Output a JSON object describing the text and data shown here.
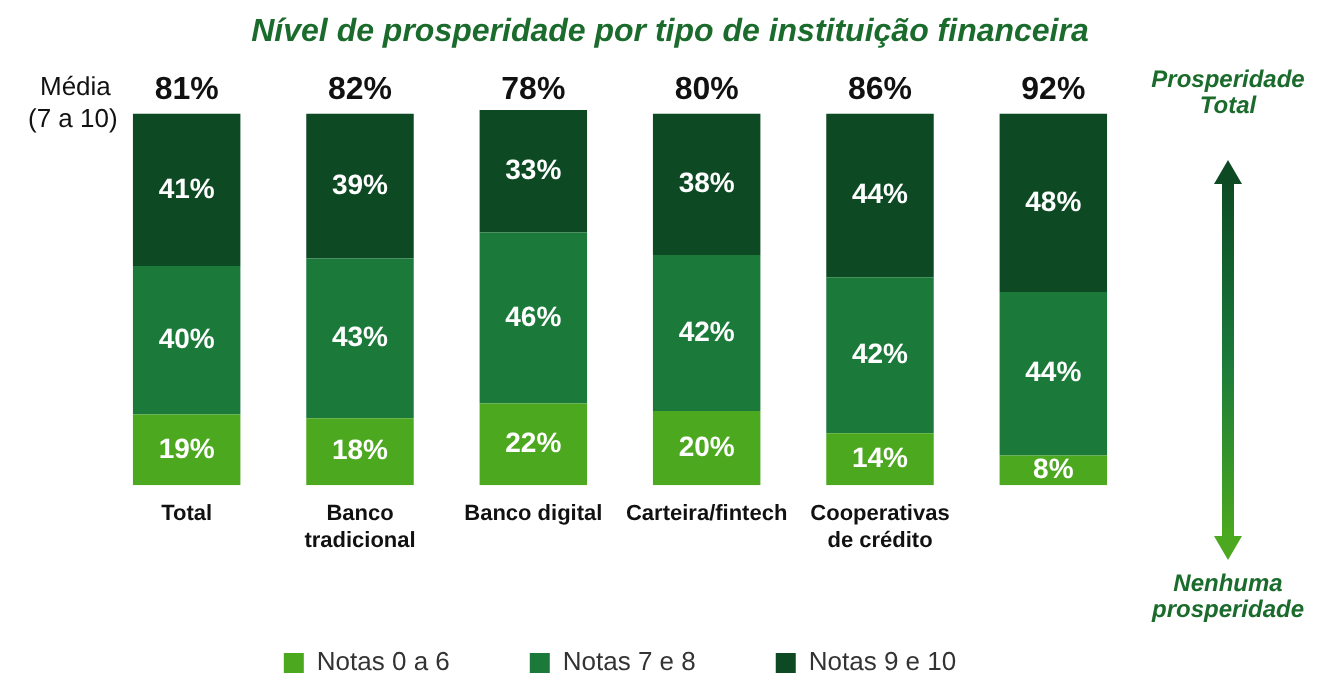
{
  "chart_data": {
    "type": "bar",
    "title": "Nível de prosperidade por tipo de instituição financeira",
    "categories": [
      "Total",
      "Banco tradicional",
      "Banco digital",
      "Carteira/fintech",
      "Cooperativas de crédito",
      null
    ],
    "stacked": true,
    "tick_labels": "x",
    "legend": "bottom",
    "series": [
      {
        "name": "Notas 0 a 6",
        "color": "#4ca81e",
        "values": [
          19,
          18,
          22,
          20,
          14,
          8
        ],
        "value_labels": [
          "19%",
          "18%",
          "22%",
          "20%",
          "14%",
          "8%"
        ]
      },
      {
        "name": "Notas 7 e 8",
        "color": "#1b7a3a",
        "values": [
          40,
          43,
          46,
          42,
          42,
          44
        ],
        "value_labels": [
          "40%",
          "43%",
          "46%",
          "42%",
          "42%",
          "44%"
        ]
      },
      {
        "name": "Notas 9 e 10",
        "color": "#0d4a24",
        "values": [
          41,
          39,
          33,
          38,
          44,
          48
        ],
        "value_labels": [
          "41%",
          "39%",
          "33%",
          "38%",
          "44%",
          "48%"
        ]
      }
    ],
    "annotations": [
      "Média (7 a 10)",
      "81%",
      "82%",
      "78%",
      "80%",
      "86%",
      "92%",
      "Prosperidade Total",
      "Nenhuma prosperidade"
    ]
  }
}
